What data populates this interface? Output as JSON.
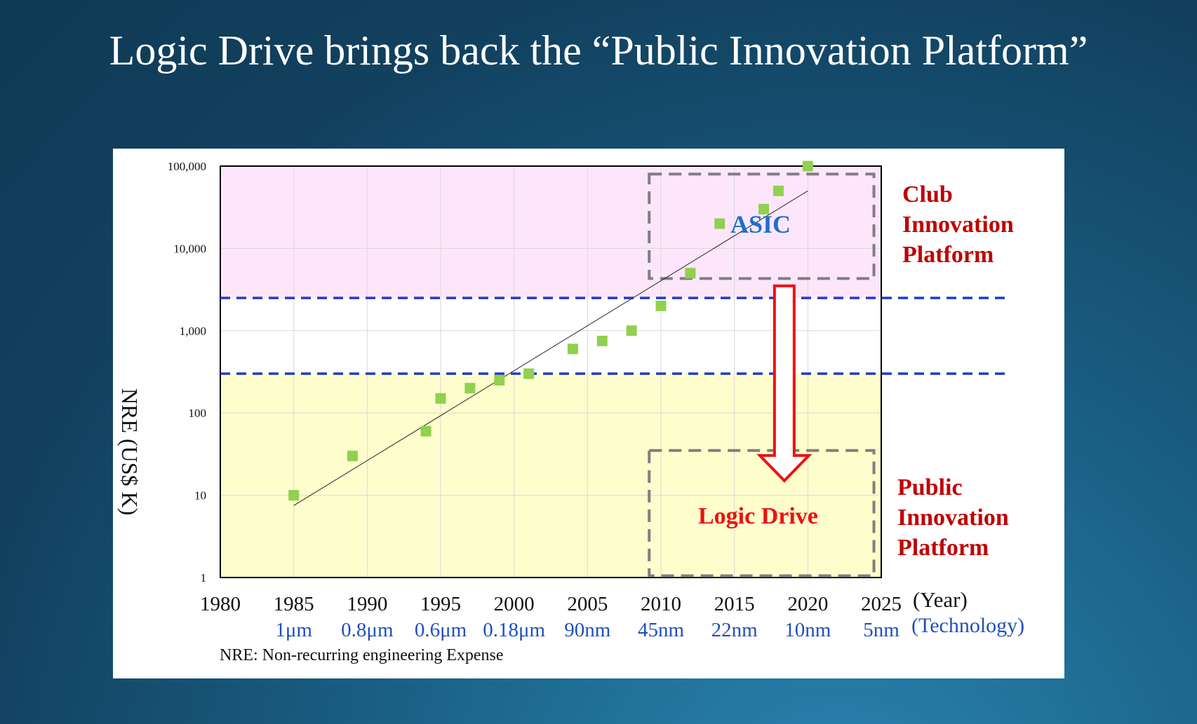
{
  "slide": {
    "title": "Logic Drive brings back the “Public Innovation Platform”"
  },
  "colors": {
    "background": "#12405e",
    "club_band": "#fde6fc",
    "public_band": "#fefdcc",
    "marker": "#92d050",
    "threshold_line": "#1f3fbf",
    "region_label": "#c00000",
    "asic_label": "#1f6fc5",
    "logic_label": "#ee1111",
    "technology_text": "#1f4fbf",
    "arrow": "#ee1111",
    "box_dash": "#7f7f7f"
  },
  "chart_data": {
    "type": "scatter",
    "y_scale": "log",
    "xlim": [
      1980,
      2025
    ],
    "ylim": [
      1,
      100000
    ],
    "x_ticks": [
      "1980",
      "1985",
      "1990",
      "1995",
      "2000",
      "2005",
      "2010",
      "2015",
      "2020",
      "2025"
    ],
    "y_ticks": [
      "1",
      "10",
      "100",
      "1,000",
      "10,000",
      "100,000"
    ],
    "x_unit_label": "(Year)",
    "ylabel": "NRE (US$ K)",
    "technology_labels": [
      {
        "year": 1985,
        "label": "1μm"
      },
      {
        "year": 1990,
        "label": "0.8μm"
      },
      {
        "year": 1995,
        "label": "0.6μm"
      },
      {
        "year": 2000,
        "label": "0.18μm"
      },
      {
        "year": 2005,
        "label": "90nm"
      },
      {
        "year": 2010,
        "label": "45nm"
      },
      {
        "year": 2015,
        "label": "22nm"
      },
      {
        "year": 2020,
        "label": "10nm"
      },
      {
        "year": 2025,
        "label": "5nm"
      }
    ],
    "technology_unit_label": "(Technology)",
    "points": [
      {
        "x": 1985,
        "y": 10
      },
      {
        "x": 1989,
        "y": 30
      },
      {
        "x": 1994,
        "y": 60
      },
      {
        "x": 1995,
        "y": 150
      },
      {
        "x": 1997,
        "y": 200
      },
      {
        "x": 1999,
        "y": 250
      },
      {
        "x": 2001,
        "y": 300
      },
      {
        "x": 2004,
        "y": 600
      },
      {
        "x": 2006,
        "y": 750
      },
      {
        "x": 2008,
        "y": 1000
      },
      {
        "x": 2010,
        "y": 2000
      },
      {
        "x": 2012,
        "y": 5000
      },
      {
        "x": 2014,
        "y": 20000
      },
      {
        "x": 2017,
        "y": 30000
      },
      {
        "x": 2018,
        "y": 50000
      },
      {
        "x": 2020,
        "y": 100000
      }
    ],
    "trendline": {
      "x": [
        1985,
        2020
      ],
      "y": [
        7.5,
        50000
      ]
    },
    "bands": [
      {
        "name": "club",
        "y_from": 2500,
        "y_to": 100000
      },
      {
        "name": "public",
        "y_from": 1,
        "y_to": 300
      }
    ],
    "thresholds": [
      2500,
      300
    ],
    "asic_box": {
      "x": [
        2009.2,
        2024.5
      ],
      "y": [
        4300,
        80000
      ]
    },
    "logic_drive_box": {
      "x": [
        2009.2,
        2024.5
      ],
      "y": [
        1.05,
        35
      ]
    },
    "arrow": {
      "x": 2018.4,
      "y_from": 3500,
      "y_to": 15
    },
    "grid": true,
    "annotations": {
      "club_platform": [
        "Club",
        "Innovation",
        "Platform"
      ],
      "public_platform": [
        "Public",
        "Innovation",
        "Platform"
      ],
      "asic": "ASIC",
      "logic_drive": "Logic Drive"
    },
    "footnote": "NRE: Non-recurring  engineering  Expense"
  }
}
